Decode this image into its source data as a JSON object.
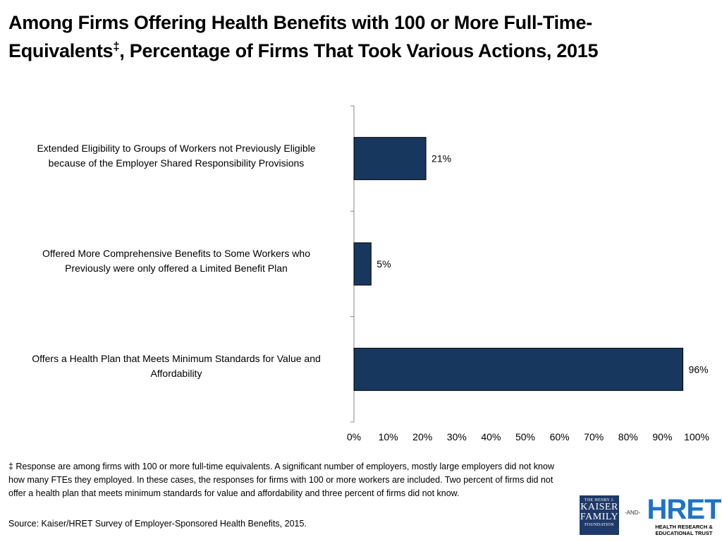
{
  "title": {
    "line1": "Among Firms Offering Health Benefits with 100 or More Full-Time-",
    "line2_pre": "Equivalents",
    "line2_mark": "‡",
    "line2_post": ", Percentage of Firms That Took Various Actions, 2015"
  },
  "chart_data": {
    "type": "bar",
    "orientation": "horizontal",
    "categories": [
      "Extended Eligibility to Groups of Workers not Previously Eligible because of the Employer Shared Responsibility Provisions",
      "Offered More Comprehensive Benefits to Some Workers who Previously were only offered a Limited Benefit Plan",
      "Offers a Health Plan that  Meets Minimum Standards for Value and Affordability"
    ],
    "category_lines": [
      [
        "Extended Eligibility to Groups of Workers not Previously Eligible",
        "because of the Employer Shared Responsibility Provisions"
      ],
      [
        "Offered More Comprehensive Benefits to Some Workers who",
        "Previously were only offered a Limited Benefit Plan"
      ],
      [
        "Offers a Health Plan that  Meets Minimum Standards for Value and",
        "Affordability"
      ]
    ],
    "values": [
      21,
      5,
      96
    ],
    "data_labels": [
      "21%",
      "5%",
      "96%"
    ],
    "xlim": [
      0,
      100
    ],
    "xticks": [
      0,
      10,
      20,
      30,
      40,
      50,
      60,
      70,
      80,
      90,
      100
    ],
    "xtick_labels": [
      "0%",
      "10%",
      "20%",
      "30%",
      "40%",
      "50%",
      "60%",
      "70%",
      "80%",
      "90%",
      "100%"
    ],
    "bar_color": "#17375e",
    "grid": false,
    "legend": "none"
  },
  "footnote": {
    "mark": "‡",
    "text": " Response are among firms with 100 or more full-time equivalents.  A significant number of employers, mostly large employers did not know how many FTEs they employed.  In these cases, the responses for firms with 100 or more workers are included.  Two percent of firms did not offer a health plan that meets minimum standards for value and affordability and three percent of firms did not know."
  },
  "source": "Source: Kaiser/HRET Survey of Employer-Sponsored Health Benefits, 2015.",
  "logos": {
    "kff_line1": "THE HENRY J.",
    "kff_line2": "KAISER",
    "kff_line3": "FAMILY",
    "kff_line4": "FOUNDATION",
    "and": "-AND-",
    "hret_word": "HRET",
    "hret_sub1": "HEALTH RESEARCH &",
    "hret_sub2": "EDUCATIONAL TRUST",
    "kff_color": "#1f3a6a",
    "hret_color": "#1e73c8"
  }
}
